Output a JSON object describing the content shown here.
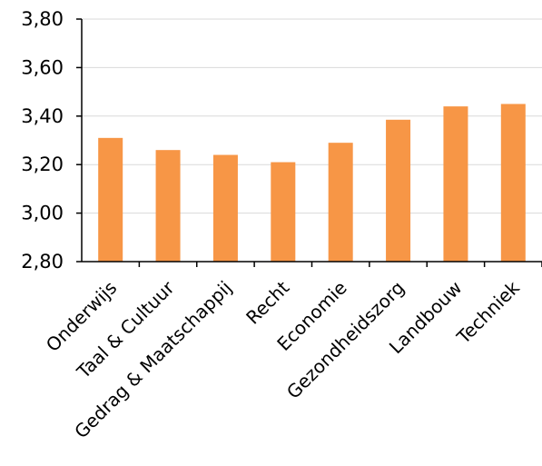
{
  "chart_data": {
    "type": "bar",
    "categories": [
      "Onderwijs",
      "Taal & Cultuur",
      "Gedrag & Maatschappij",
      "Recht",
      "Economie",
      "Gezondheidszorg",
      "Landbouw",
      "Techniek"
    ],
    "values": [
      3.31,
      3.26,
      3.24,
      3.21,
      3.29,
      3.385,
      3.44,
      3.45
    ],
    "ylim": [
      2.8,
      3.8
    ],
    "yticks": [
      "2,80",
      "3,00",
      "3,20",
      "3,40",
      "3,60",
      "3,80"
    ],
    "grid": true,
    "bar_color": "#F79646",
    "grid_color": "#D9D9D9",
    "title": "",
    "xlabel": "",
    "ylabel": ""
  }
}
